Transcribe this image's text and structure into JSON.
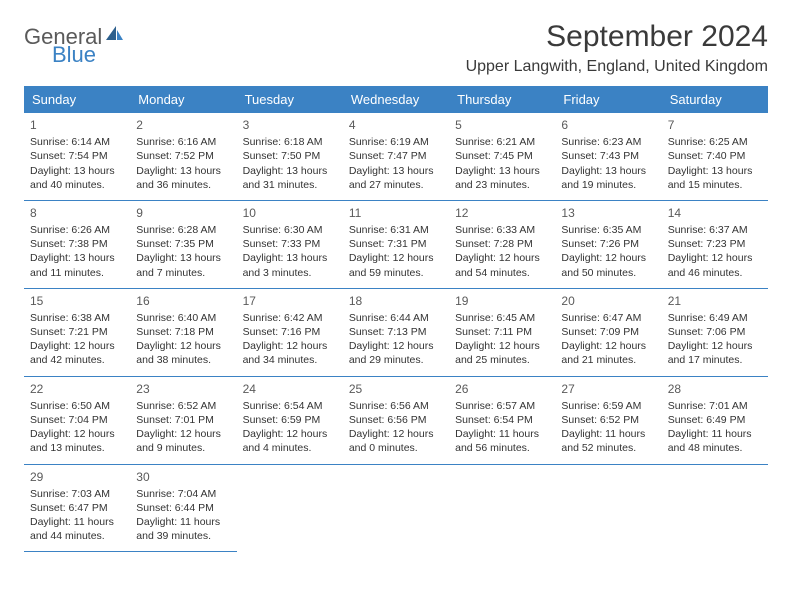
{
  "logo": {
    "text1": "General",
    "text2": "Blue"
  },
  "header": {
    "month_title": "September 2024",
    "location": "Upper Langwith, England, United Kingdom"
  },
  "colors": {
    "header_bg": "#3b82c4",
    "header_text": "#ffffff",
    "body_text": "#333333",
    "day_num": "#5a5a5a",
    "logo_gray": "#5a5a5a",
    "logo_blue": "#3b82c4",
    "border": "#3b82c4",
    "background": "#ffffff"
  },
  "day_names": [
    "Sunday",
    "Monday",
    "Tuesday",
    "Wednesday",
    "Thursday",
    "Friday",
    "Saturday"
  ],
  "days": [
    {
      "num": "1",
      "sunrise": "Sunrise: 6:14 AM",
      "sunset": "Sunset: 7:54 PM",
      "daylight1": "Daylight: 13 hours",
      "daylight2": "and 40 minutes."
    },
    {
      "num": "2",
      "sunrise": "Sunrise: 6:16 AM",
      "sunset": "Sunset: 7:52 PM",
      "daylight1": "Daylight: 13 hours",
      "daylight2": "and 36 minutes."
    },
    {
      "num": "3",
      "sunrise": "Sunrise: 6:18 AM",
      "sunset": "Sunset: 7:50 PM",
      "daylight1": "Daylight: 13 hours",
      "daylight2": "and 31 minutes."
    },
    {
      "num": "4",
      "sunrise": "Sunrise: 6:19 AM",
      "sunset": "Sunset: 7:47 PM",
      "daylight1": "Daylight: 13 hours",
      "daylight2": "and 27 minutes."
    },
    {
      "num": "5",
      "sunrise": "Sunrise: 6:21 AM",
      "sunset": "Sunset: 7:45 PM",
      "daylight1": "Daylight: 13 hours",
      "daylight2": "and 23 minutes."
    },
    {
      "num": "6",
      "sunrise": "Sunrise: 6:23 AM",
      "sunset": "Sunset: 7:43 PM",
      "daylight1": "Daylight: 13 hours",
      "daylight2": "and 19 minutes."
    },
    {
      "num": "7",
      "sunrise": "Sunrise: 6:25 AM",
      "sunset": "Sunset: 7:40 PM",
      "daylight1": "Daylight: 13 hours",
      "daylight2": "and 15 minutes."
    },
    {
      "num": "8",
      "sunrise": "Sunrise: 6:26 AM",
      "sunset": "Sunset: 7:38 PM",
      "daylight1": "Daylight: 13 hours",
      "daylight2": "and 11 minutes."
    },
    {
      "num": "9",
      "sunrise": "Sunrise: 6:28 AM",
      "sunset": "Sunset: 7:35 PM",
      "daylight1": "Daylight: 13 hours",
      "daylight2": "and 7 minutes."
    },
    {
      "num": "10",
      "sunrise": "Sunrise: 6:30 AM",
      "sunset": "Sunset: 7:33 PM",
      "daylight1": "Daylight: 13 hours",
      "daylight2": "and 3 minutes."
    },
    {
      "num": "11",
      "sunrise": "Sunrise: 6:31 AM",
      "sunset": "Sunset: 7:31 PM",
      "daylight1": "Daylight: 12 hours",
      "daylight2": "and 59 minutes."
    },
    {
      "num": "12",
      "sunrise": "Sunrise: 6:33 AM",
      "sunset": "Sunset: 7:28 PM",
      "daylight1": "Daylight: 12 hours",
      "daylight2": "and 54 minutes."
    },
    {
      "num": "13",
      "sunrise": "Sunrise: 6:35 AM",
      "sunset": "Sunset: 7:26 PM",
      "daylight1": "Daylight: 12 hours",
      "daylight2": "and 50 minutes."
    },
    {
      "num": "14",
      "sunrise": "Sunrise: 6:37 AM",
      "sunset": "Sunset: 7:23 PM",
      "daylight1": "Daylight: 12 hours",
      "daylight2": "and 46 minutes."
    },
    {
      "num": "15",
      "sunrise": "Sunrise: 6:38 AM",
      "sunset": "Sunset: 7:21 PM",
      "daylight1": "Daylight: 12 hours",
      "daylight2": "and 42 minutes."
    },
    {
      "num": "16",
      "sunrise": "Sunrise: 6:40 AM",
      "sunset": "Sunset: 7:18 PM",
      "daylight1": "Daylight: 12 hours",
      "daylight2": "and 38 minutes."
    },
    {
      "num": "17",
      "sunrise": "Sunrise: 6:42 AM",
      "sunset": "Sunset: 7:16 PM",
      "daylight1": "Daylight: 12 hours",
      "daylight2": "and 34 minutes."
    },
    {
      "num": "18",
      "sunrise": "Sunrise: 6:44 AM",
      "sunset": "Sunset: 7:13 PM",
      "daylight1": "Daylight: 12 hours",
      "daylight2": "and 29 minutes."
    },
    {
      "num": "19",
      "sunrise": "Sunrise: 6:45 AM",
      "sunset": "Sunset: 7:11 PM",
      "daylight1": "Daylight: 12 hours",
      "daylight2": "and 25 minutes."
    },
    {
      "num": "20",
      "sunrise": "Sunrise: 6:47 AM",
      "sunset": "Sunset: 7:09 PM",
      "daylight1": "Daylight: 12 hours",
      "daylight2": "and 21 minutes."
    },
    {
      "num": "21",
      "sunrise": "Sunrise: 6:49 AM",
      "sunset": "Sunset: 7:06 PM",
      "daylight1": "Daylight: 12 hours",
      "daylight2": "and 17 minutes."
    },
    {
      "num": "22",
      "sunrise": "Sunrise: 6:50 AM",
      "sunset": "Sunset: 7:04 PM",
      "daylight1": "Daylight: 12 hours",
      "daylight2": "and 13 minutes."
    },
    {
      "num": "23",
      "sunrise": "Sunrise: 6:52 AM",
      "sunset": "Sunset: 7:01 PM",
      "daylight1": "Daylight: 12 hours",
      "daylight2": "and 9 minutes."
    },
    {
      "num": "24",
      "sunrise": "Sunrise: 6:54 AM",
      "sunset": "Sunset: 6:59 PM",
      "daylight1": "Daylight: 12 hours",
      "daylight2": "and 4 minutes."
    },
    {
      "num": "25",
      "sunrise": "Sunrise: 6:56 AM",
      "sunset": "Sunset: 6:56 PM",
      "daylight1": "Daylight: 12 hours",
      "daylight2": "and 0 minutes."
    },
    {
      "num": "26",
      "sunrise": "Sunrise: 6:57 AM",
      "sunset": "Sunset: 6:54 PM",
      "daylight1": "Daylight: 11 hours",
      "daylight2": "and 56 minutes."
    },
    {
      "num": "27",
      "sunrise": "Sunrise: 6:59 AM",
      "sunset": "Sunset: 6:52 PM",
      "daylight1": "Daylight: 11 hours",
      "daylight2": "and 52 minutes."
    },
    {
      "num": "28",
      "sunrise": "Sunrise: 7:01 AM",
      "sunset": "Sunset: 6:49 PM",
      "daylight1": "Daylight: 11 hours",
      "daylight2": "and 48 minutes."
    },
    {
      "num": "29",
      "sunrise": "Sunrise: 7:03 AM",
      "sunset": "Sunset: 6:47 PM",
      "daylight1": "Daylight: 11 hours",
      "daylight2": "and 44 minutes."
    },
    {
      "num": "30",
      "sunrise": "Sunrise: 7:04 AM",
      "sunset": "Sunset: 6:44 PM",
      "daylight1": "Daylight: 11 hours",
      "daylight2": "and 39 minutes."
    }
  ]
}
